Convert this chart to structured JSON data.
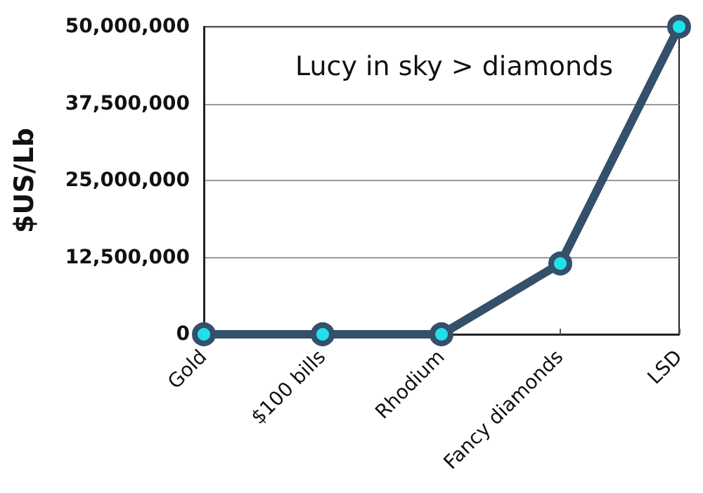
{
  "chart_data": {
    "type": "line",
    "ylabel": "$US/Lb",
    "categories": [
      "Gold",
      "$100 bills",
      "Rhodium",
      "Fancy diamonds",
      "LSD"
    ],
    "series": [
      {
        "color": "#34506a",
        "values": [
          0,
          0,
          0,
          11500000,
          50000000
        ]
      }
    ],
    "ylim": [
      0,
      50000000
    ],
    "yticks": [
      {
        "value": 0,
        "label": "0"
      },
      {
        "value": 12500000,
        "label": "12,500,000"
      },
      {
        "value": 25000000,
        "label": "25,000,000"
      },
      {
        "value": 37500000,
        "label": "37,500,000"
      },
      {
        "value": 50000000,
        "label": "50,000,000"
      }
    ],
    "grid": "y",
    "marker": "circle",
    "annotations": [
      "Lucy in sky > diamonds"
    ]
  }
}
